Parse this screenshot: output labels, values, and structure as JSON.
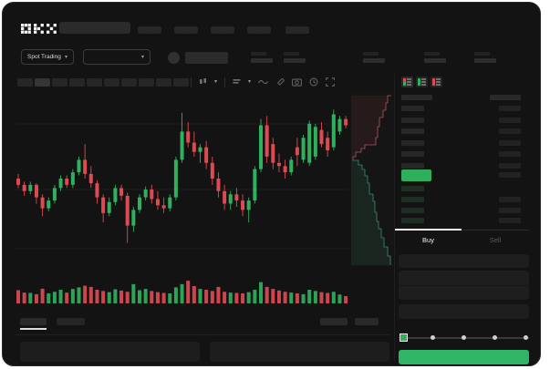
{
  "header": {
    "logo": "OKX",
    "market_type_label": "Spot Trading"
  },
  "toolbar": {
    "interval_slots": 10,
    "icons": [
      "candle-style-icon",
      "chevron-down-icon",
      "chart-type-icon",
      "chevron-down-icon",
      "line-tool-icon",
      "draw-icon",
      "camera-icon",
      "history-icon",
      "fullscreen-icon"
    ]
  },
  "orderbook": {
    "mode_icons": [
      "book-both-icon",
      "book-bids-icon",
      "book-asks-icon"
    ],
    "ask_rows": 6,
    "bid_rows": 4,
    "tabs": {
      "buy": "Buy",
      "sell": "Sell"
    },
    "slider_steps": 5
  },
  "colors": {
    "up": "#2fb05e",
    "down": "#dd4b52",
    "last_price_pill": "#2fae5b",
    "buy_button": "#30b566",
    "depth_ask_line": "#a85a5f",
    "depth_bid_line": "#3e8a76",
    "depth_ask_fill": "rgba(210,80,85,0.10)",
    "depth_bid_fill": "rgba(62,160,118,0.12)",
    "bid_price_block": "#1d2e23"
  },
  "chart_data": {
    "type": "candlestick",
    "title": "",
    "xlabel": "",
    "ylabel": "",
    "note": "normalized price scale 0-100 (no axis labels visible in UI skeleton)",
    "ylim": [
      0,
      100
    ],
    "grid": true,
    "candles_ohlc": [
      [
        50,
        53,
        44,
        46
      ],
      [
        46,
        48,
        39,
        42
      ],
      [
        42,
        48,
        40,
        46
      ],
      [
        46,
        47,
        34,
        38
      ],
      [
        38,
        40,
        26,
        31
      ],
      [
        31,
        38,
        29,
        36
      ],
      [
        36,
        46,
        34,
        44
      ],
      [
        44,
        52,
        42,
        50
      ],
      [
        50,
        52,
        44,
        46
      ],
      [
        46,
        56,
        44,
        54
      ],
      [
        54,
        64,
        52,
        62
      ],
      [
        62,
        72,
        50,
        53
      ],
      [
        53,
        58,
        44,
        47
      ],
      [
        47,
        49,
        34,
        38
      ],
      [
        38,
        40,
        22,
        28
      ],
      [
        28,
        38,
        26,
        35
      ],
      [
        35,
        46,
        33,
        44
      ],
      [
        44,
        46,
        36,
        39
      ],
      [
        39,
        41,
        9,
        20
      ],
      [
        20,
        32,
        16,
        30
      ],
      [
        30,
        40,
        28,
        38
      ],
      [
        38,
        45,
        36,
        43
      ],
      [
        43,
        46,
        34,
        37
      ],
      [
        37,
        42,
        30,
        33
      ],
      [
        33,
        38,
        28,
        31
      ],
      [
        31,
        40,
        29,
        38
      ],
      [
        38,
        64,
        36,
        62
      ],
      [
        62,
        92,
        60,
        80
      ],
      [
        80,
        86,
        70,
        73
      ],
      [
        73,
        80,
        64,
        67
      ],
      [
        67,
        72,
        60,
        70
      ],
      [
        70,
        74,
        56,
        60
      ],
      [
        60,
        64,
        46,
        50
      ],
      [
        50,
        54,
        38,
        42
      ],
      [
        42,
        46,
        30,
        34
      ],
      [
        34,
        42,
        30,
        40
      ],
      [
        40,
        44,
        32,
        36
      ],
      [
        36,
        40,
        26,
        30
      ],
      [
        30,
        38,
        22,
        36
      ],
      [
        36,
        58,
        34,
        56
      ],
      [
        56,
        88,
        54,
        84
      ],
      [
        84,
        90,
        60,
        64
      ],
      [
        72,
        76,
        56,
        60
      ],
      [
        60,
        66,
        54,
        58
      ],
      [
        58,
        62,
        50,
        54
      ],
      [
        54,
        64,
        52,
        62
      ],
      [
        70,
        76,
        58,
        65
      ],
      [
        62,
        78,
        60,
        76
      ],
      [
        60,
        87,
        58,
        85
      ],
      [
        64,
        85,
        62,
        83
      ],
      [
        81,
        86,
        70,
        72
      ],
      [
        76,
        80,
        64,
        68
      ],
      [
        70,
        94,
        68,
        91
      ],
      [
        80,
        90,
        78,
        88
      ],
      [
        88,
        90,
        82,
        84
      ]
    ],
    "volumes": [
      48,
      36,
      34,
      28,
      55,
      32,
      40,
      50,
      36,
      54,
      62,
      70,
      64,
      50,
      44,
      38,
      52,
      46,
      40,
      78,
      48,
      54,
      44,
      38,
      34,
      32,
      62,
      78,
      95,
      68,
      54,
      50,
      44,
      64,
      40,
      36,
      34,
      32,
      38,
      50,
      88,
      64,
      54,
      46,
      40,
      36,
      32,
      28,
      50,
      44,
      38,
      34,
      40,
      26,
      18
    ],
    "depth": {
      "asks_steps": [
        [
          44,
          4
        ],
        [
          40,
          12
        ],
        [
          38,
          20
        ],
        [
          35,
          28
        ],
        [
          31,
          38
        ],
        [
          29,
          50
        ],
        [
          27,
          58
        ],
        [
          15,
          62
        ],
        [
          11,
          66
        ],
        [
          5,
          71
        ],
        [
          2,
          75
        ]
      ],
      "bids_steps": [
        [
          2,
          75
        ],
        [
          8,
          80
        ],
        [
          12,
          85
        ],
        [
          15,
          92
        ],
        [
          18,
          100
        ],
        [
          20,
          112
        ],
        [
          24,
          120
        ],
        [
          26,
          132
        ],
        [
          28,
          142
        ],
        [
          30,
          150
        ],
        [
          33,
          160
        ],
        [
          36,
          170
        ],
        [
          40,
          180
        ],
        [
          43,
          190
        ]
      ]
    }
  }
}
